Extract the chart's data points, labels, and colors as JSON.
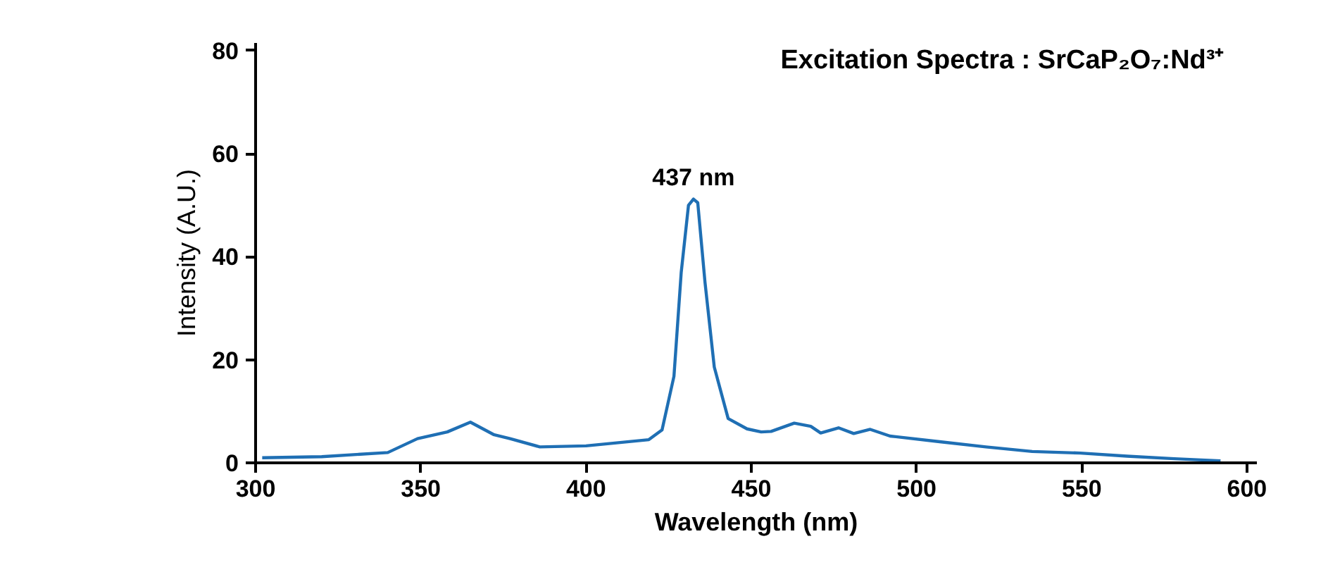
{
  "chart_data": {
    "type": "line",
    "title": "Excitation Spectra : SrCaP₂O₇:Nd³⁺",
    "xlabel": "Wavelength (nm)",
    "ylabel": "Intensity (A.U.)",
    "annotations": [
      {
        "text": "437 nm",
        "x": 432.5,
        "y": 51.2
      }
    ],
    "xlim": [
      300,
      603
    ],
    "xticks": [
      300,
      350,
      400,
      450,
      500,
      550,
      600
    ],
    "ylim": [
      0,
      81.5
    ],
    "yticks": [
      0,
      20,
      40,
      60,
      80
    ],
    "grid": false,
    "marker": "none",
    "line_style": "solid",
    "series": [
      {
        "color": "#1f6fb4",
        "x": [
          302,
          320,
          340,
          349,
          358,
          365,
          372,
          377,
          386,
          400,
          419,
          423,
          426.6,
          428.8,
          431,
          432.5,
          433.8,
          436,
          438.8,
          443,
          448.7,
          453,
          456,
          463,
          468,
          471,
          476.4,
          481,
          486,
          492,
          507,
          521,
          535,
          549.6,
          563.7,
          578,
          592
        ],
        "values": [
          1,
          1.2,
          2,
          4.7,
          6,
          7.9,
          5.5,
          4.7,
          3.1,
          3.3,
          4.5,
          6.4,
          16.8,
          37,
          50,
          51.2,
          50.5,
          35,
          18.6,
          8.6,
          6.6,
          6,
          6.1,
          7.7,
          7.1,
          5.8,
          6.8,
          5.7,
          6.5,
          5.2,
          4.1,
          3.1,
          2.2,
          1.9,
          1.3,
          0.8,
          0.4
        ]
      }
    ]
  }
}
